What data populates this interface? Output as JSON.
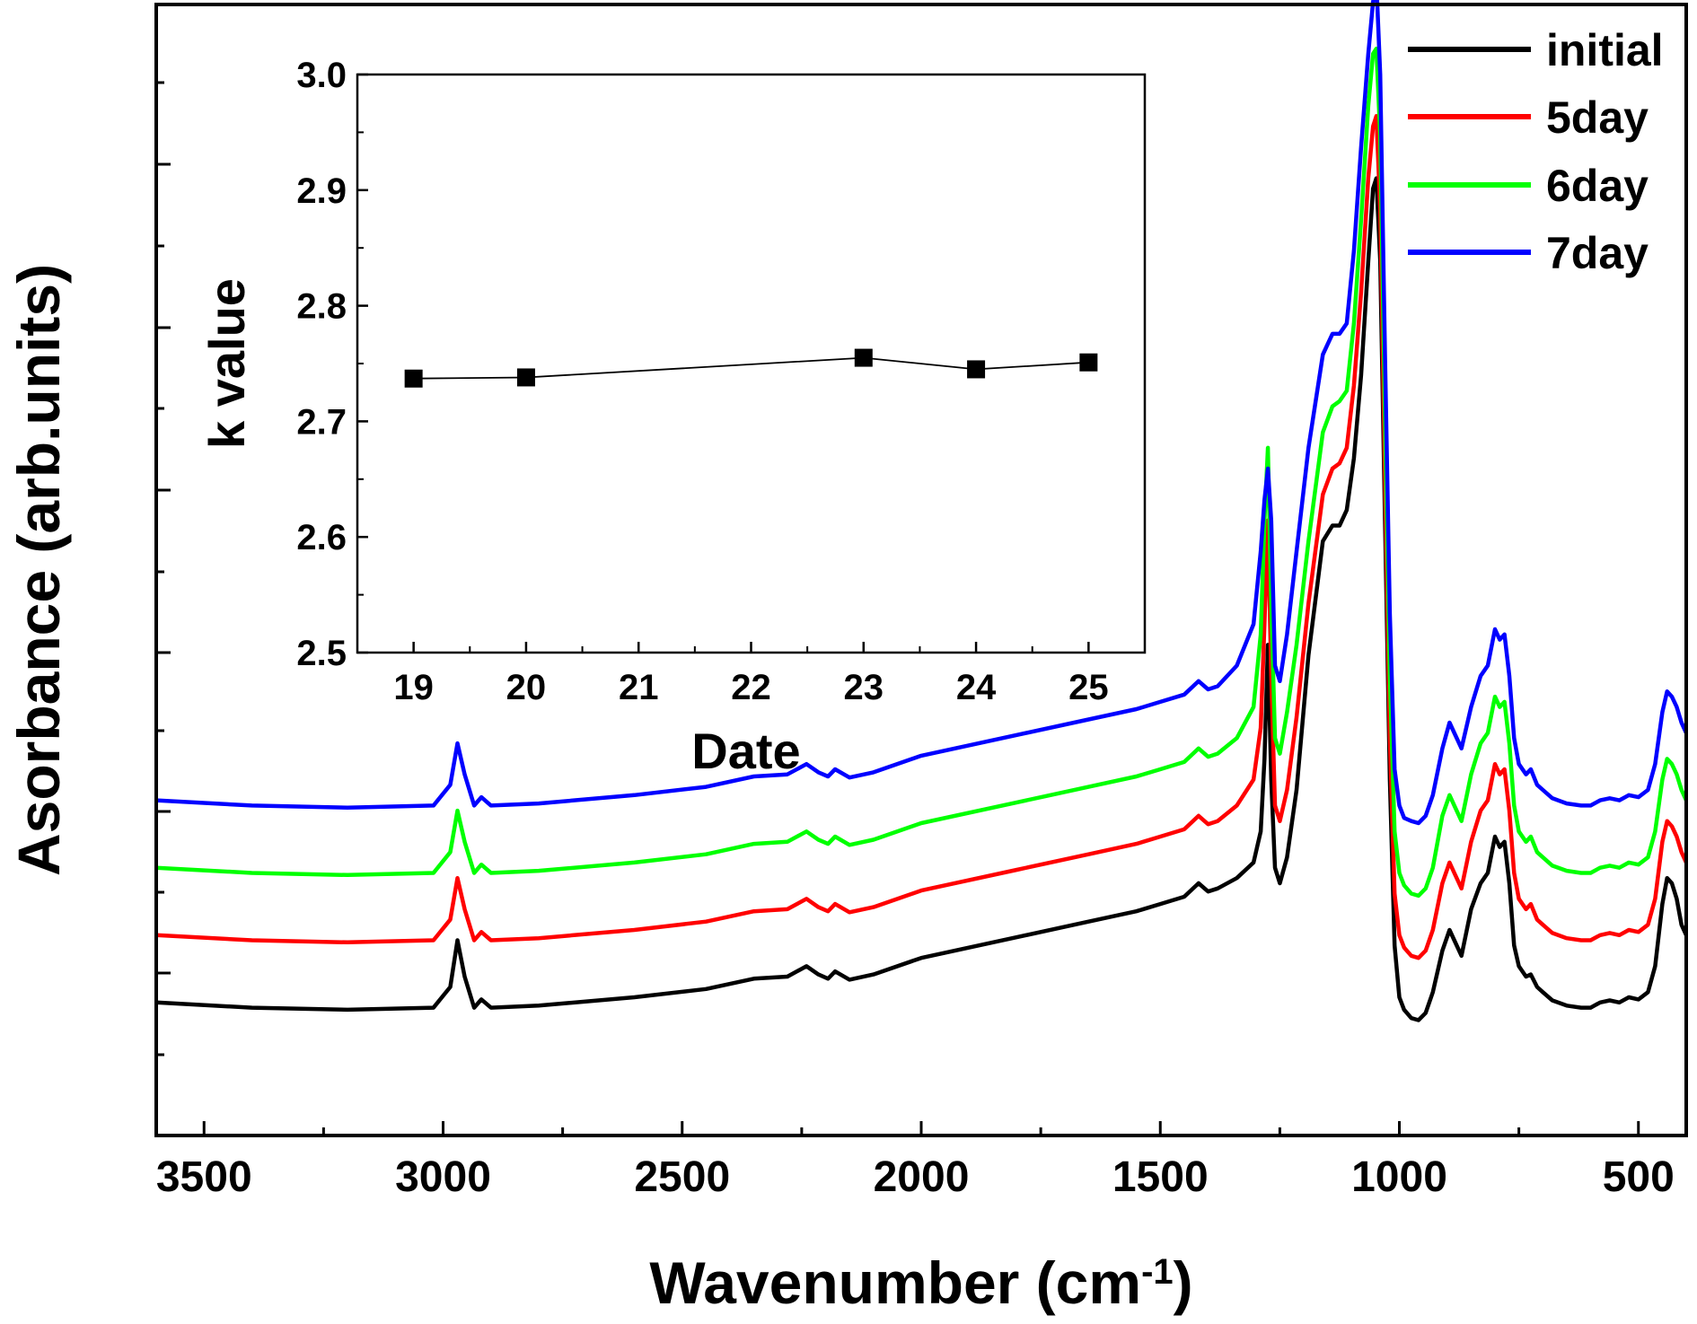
{
  "chart_data": [
    {
      "type": "line",
      "xlabel": "Wavenumber (cm",
      "xlabel_sup": "-1",
      "xlabel_close": ")",
      "ylabel": "Asorbance (arb.units)",
      "xlim": [
        3600,
        400
      ],
      "x_reversed": true,
      "ylim": [
        0,
        1
      ],
      "y_tick_labels_shown": false,
      "x_ticks": [
        3500,
        3000,
        2500,
        2000,
        1500,
        1000,
        500
      ],
      "x_tick_labels": [
        "3500",
        "3000",
        "2500",
        "2000",
        "1500",
        "1000",
        "500"
      ],
      "grid": false,
      "legend_position": "top-right",
      "series": [
        {
          "name": "initial",
          "color": "#000000",
          "x": [
            3600,
            3400,
            3200,
            3020,
            2985,
            2970,
            2955,
            2935,
            2920,
            2900,
            2800,
            2600,
            2450,
            2350,
            2280,
            2240,
            2215,
            2195,
            2180,
            2150,
            2100,
            2000,
            1800,
            1650,
            1550,
            1500,
            1450,
            1420,
            1400,
            1380,
            1340,
            1305,
            1290,
            1282,
            1275,
            1268,
            1260,
            1250,
            1235,
            1215,
            1190,
            1160,
            1140,
            1125,
            1110,
            1095,
            1080,
            1065,
            1055,
            1048,
            1040,
            1030,
            1020,
            1010,
            1000,
            990,
            975,
            960,
            945,
            930,
            910,
            895,
            885,
            870,
            850,
            830,
            815,
            800,
            790,
            780,
            770,
            760,
            750,
            735,
            725,
            712,
            700,
            680,
            650,
            620,
            600,
            580,
            560,
            540,
            520,
            500,
            480,
            465,
            450,
            440,
            430,
            420,
            410,
            400
          ],
          "y": [
            0.085,
            0.08,
            0.078,
            0.08,
            0.1,
            0.145,
            0.11,
            0.08,
            0.088,
            0.08,
            0.082,
            0.09,
            0.098,
            0.108,
            0.11,
            0.12,
            0.112,
            0.108,
            0.115,
            0.107,
            0.112,
            0.128,
            0.148,
            0.163,
            0.173,
            0.18,
            0.187,
            0.2,
            0.192,
            0.195,
            0.205,
            0.22,
            0.25,
            0.32,
            0.43,
            0.3,
            0.215,
            0.2,
            0.225,
            0.29,
            0.42,
            0.53,
            0.545,
            0.545,
            0.56,
            0.61,
            0.69,
            0.8,
            0.87,
            0.88,
            0.8,
            0.55,
            0.3,
            0.14,
            0.09,
            0.078,
            0.07,
            0.068,
            0.075,
            0.095,
            0.135,
            0.155,
            0.145,
            0.13,
            0.175,
            0.2,
            0.21,
            0.245,
            0.235,
            0.24,
            0.2,
            0.14,
            0.12,
            0.11,
            0.112,
            0.1,
            0.095,
            0.087,
            0.082,
            0.08,
            0.08,
            0.085,
            0.087,
            0.085,
            0.09,
            0.088,
            0.095,
            0.12,
            0.18,
            0.205,
            0.2,
            0.185,
            0.16,
            0.15
          ]
        },
        {
          "name": "5day",
          "color": "#ff0000",
          "x": [
            3600,
            3400,
            3200,
            3020,
            2985,
            2970,
            2955,
            2935,
            2920,
            2900,
            2800,
            2600,
            2450,
            2350,
            2280,
            2240,
            2215,
            2195,
            2180,
            2150,
            2100,
            2000,
            1800,
            1650,
            1550,
            1500,
            1450,
            1420,
            1400,
            1380,
            1340,
            1305,
            1290,
            1282,
            1275,
            1268,
            1260,
            1250,
            1235,
            1215,
            1190,
            1160,
            1140,
            1125,
            1110,
            1095,
            1080,
            1065,
            1055,
            1048,
            1040,
            1030,
            1020,
            1010,
            1000,
            990,
            975,
            960,
            945,
            930,
            910,
            895,
            885,
            870,
            850,
            830,
            815,
            800,
            790,
            780,
            770,
            760,
            750,
            735,
            725,
            712,
            700,
            680,
            650,
            620,
            600,
            580,
            560,
            540,
            520,
            500,
            480,
            465,
            450,
            440,
            430,
            420,
            410,
            400
          ],
          "y": [
            0.15,
            0.145,
            0.143,
            0.145,
            0.165,
            0.205,
            0.175,
            0.145,
            0.153,
            0.145,
            0.147,
            0.155,
            0.163,
            0.173,
            0.175,
            0.185,
            0.177,
            0.173,
            0.18,
            0.172,
            0.177,
            0.193,
            0.213,
            0.228,
            0.238,
            0.245,
            0.252,
            0.265,
            0.257,
            0.26,
            0.275,
            0.3,
            0.35,
            0.45,
            0.55,
            0.4,
            0.275,
            0.26,
            0.29,
            0.36,
            0.47,
            0.575,
            0.6,
            0.605,
            0.62,
            0.68,
            0.77,
            0.88,
            0.93,
            0.94,
            0.85,
            0.59,
            0.34,
            0.19,
            0.15,
            0.138,
            0.13,
            0.128,
            0.135,
            0.155,
            0.2,
            0.22,
            0.21,
            0.195,
            0.24,
            0.27,
            0.28,
            0.315,
            0.305,
            0.31,
            0.27,
            0.21,
            0.185,
            0.175,
            0.18,
            0.165,
            0.16,
            0.152,
            0.147,
            0.145,
            0.145,
            0.15,
            0.152,
            0.15,
            0.155,
            0.153,
            0.16,
            0.185,
            0.24,
            0.26,
            0.255,
            0.245,
            0.23,
            0.22
          ]
        },
        {
          "name": "6day",
          "color": "#00ff00",
          "x": [
            3600,
            3400,
            3200,
            3020,
            2985,
            2970,
            2955,
            2935,
            2920,
            2900,
            2800,
            2600,
            2450,
            2350,
            2280,
            2240,
            2215,
            2195,
            2180,
            2150,
            2100,
            2000,
            1800,
            1650,
            1550,
            1500,
            1450,
            1420,
            1400,
            1380,
            1340,
            1305,
            1290,
            1282,
            1275,
            1268,
            1260,
            1250,
            1235,
            1215,
            1190,
            1160,
            1140,
            1125,
            1110,
            1095,
            1080,
            1065,
            1055,
            1048,
            1040,
            1030,
            1020,
            1010,
            1000,
            990,
            975,
            960,
            945,
            930,
            910,
            895,
            885,
            870,
            850,
            830,
            815,
            800,
            790,
            780,
            770,
            760,
            750,
            735,
            725,
            712,
            700,
            680,
            650,
            620,
            600,
            580,
            560,
            540,
            520,
            500,
            480,
            465,
            450,
            440,
            430,
            420,
            410,
            400
          ],
          "y": [
            0.215,
            0.21,
            0.208,
            0.21,
            0.23,
            0.27,
            0.24,
            0.21,
            0.218,
            0.21,
            0.212,
            0.22,
            0.228,
            0.238,
            0.24,
            0.25,
            0.242,
            0.238,
            0.245,
            0.237,
            0.242,
            0.258,
            0.278,
            0.293,
            0.303,
            0.31,
            0.317,
            0.33,
            0.322,
            0.325,
            0.34,
            0.37,
            0.44,
            0.55,
            0.62,
            0.47,
            0.34,
            0.325,
            0.365,
            0.43,
            0.53,
            0.635,
            0.66,
            0.665,
            0.675,
            0.74,
            0.84,
            0.95,
            1.0,
            1.005,
            0.92,
            0.65,
            0.4,
            0.25,
            0.21,
            0.198,
            0.19,
            0.188,
            0.195,
            0.215,
            0.265,
            0.285,
            0.275,
            0.26,
            0.305,
            0.335,
            0.345,
            0.38,
            0.37,
            0.375,
            0.335,
            0.275,
            0.25,
            0.24,
            0.245,
            0.23,
            0.225,
            0.217,
            0.212,
            0.21,
            0.21,
            0.215,
            0.217,
            0.215,
            0.22,
            0.218,
            0.225,
            0.25,
            0.3,
            0.32,
            0.315,
            0.305,
            0.29,
            0.28
          ]
        },
        {
          "name": "7day",
          "color": "#0000ff",
          "x": [
            3600,
            3400,
            3200,
            3020,
            2985,
            2970,
            2955,
            2935,
            2920,
            2900,
            2800,
            2600,
            2450,
            2350,
            2280,
            2240,
            2215,
            2195,
            2180,
            2150,
            2100,
            2000,
            1800,
            1650,
            1550,
            1500,
            1450,
            1420,
            1400,
            1380,
            1340,
            1305,
            1290,
            1282,
            1275,
            1268,
            1260,
            1250,
            1235,
            1215,
            1190,
            1160,
            1140,
            1125,
            1110,
            1095,
            1080,
            1065,
            1055,
            1048,
            1040,
            1030,
            1020,
            1010,
            1000,
            990,
            975,
            960,
            945,
            930,
            910,
            895,
            885,
            870,
            850,
            830,
            815,
            800,
            790,
            780,
            770,
            760,
            750,
            735,
            725,
            712,
            700,
            680,
            650,
            620,
            600,
            580,
            560,
            540,
            520,
            500,
            480,
            465,
            450,
            440,
            430,
            420,
            410,
            400
          ],
          "y": [
            0.28,
            0.275,
            0.273,
            0.275,
            0.295,
            0.335,
            0.305,
            0.275,
            0.283,
            0.275,
            0.277,
            0.285,
            0.293,
            0.303,
            0.305,
            0.315,
            0.307,
            0.303,
            0.31,
            0.302,
            0.307,
            0.323,
            0.343,
            0.358,
            0.368,
            0.375,
            0.382,
            0.395,
            0.387,
            0.39,
            0.41,
            0.45,
            0.52,
            0.57,
            0.6,
            0.55,
            0.41,
            0.395,
            0.44,
            0.52,
            0.62,
            0.71,
            0.73,
            0.73,
            0.74,
            0.81,
            0.91,
            1.0,
            1.05,
            1.07,
            0.98,
            0.71,
            0.46,
            0.31,
            0.275,
            0.263,
            0.26,
            0.258,
            0.265,
            0.285,
            0.33,
            0.355,
            0.345,
            0.33,
            0.37,
            0.4,
            0.41,
            0.445,
            0.435,
            0.44,
            0.4,
            0.34,
            0.315,
            0.305,
            0.31,
            0.295,
            0.29,
            0.282,
            0.277,
            0.275,
            0.275,
            0.28,
            0.282,
            0.28,
            0.285,
            0.283,
            0.29,
            0.315,
            0.365,
            0.385,
            0.38,
            0.37,
            0.355,
            0.345
          ]
        }
      ]
    },
    {
      "type": "line",
      "inset": true,
      "xlabel": "Date",
      "ylabel": "k value",
      "xlim": [
        18.5,
        25.5
      ],
      "ylim": [
        2.5,
        3.0
      ],
      "x_ticks": [
        19,
        20,
        21,
        22,
        23,
        24,
        25
      ],
      "x_tick_labels": [
        "19",
        "20",
        "21",
        "22",
        "23",
        "24",
        "25"
      ],
      "y_ticks": [
        2.5,
        2.6,
        2.7,
        2.8,
        2.9,
        3.0
      ],
      "y_tick_labels": [
        "2.5",
        "2.6",
        "2.7",
        "2.8",
        "2.9",
        "3.0"
      ],
      "grid": false,
      "marker": "square",
      "series": [
        {
          "color": "#000000",
          "x": [
            19,
            20,
            23,
            24,
            25
          ],
          "y": [
            2.737,
            2.738,
            2.755,
            2.745,
            2.751
          ]
        }
      ]
    }
  ]
}
